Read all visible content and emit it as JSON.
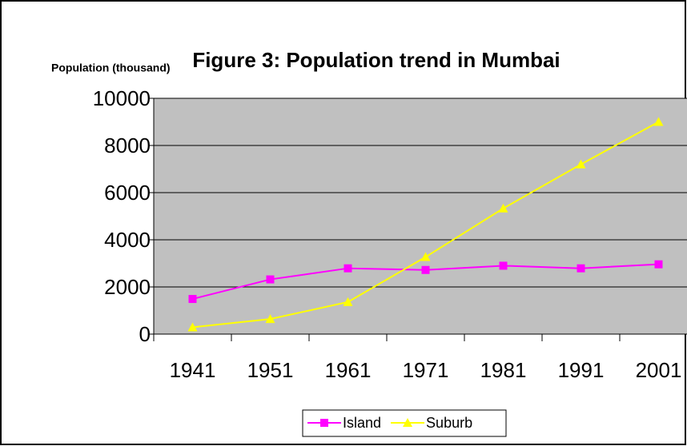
{
  "chart_data": {
    "type": "line",
    "title": "Figure 3: Population trend in Mumbai",
    "y_label": "Population (thousand)",
    "categories": [
      "1941",
      "1951",
      "1961",
      "1971",
      "1981",
      "1991",
      "2001"
    ],
    "series": [
      {
        "name": "Island",
        "color": "#ff00ff",
        "marker": "square",
        "values": [
          1490,
          2320,
          2790,
          2720,
          2900,
          2790,
          2960
        ]
      },
      {
        "name": "Suburb",
        "color": "#ffff00",
        "marker": "triangle",
        "values": [
          290,
          640,
          1360,
          3270,
          5330,
          7200,
          9000
        ]
      }
    ],
    "ylim": [
      0,
      10000
    ],
    "yticks": [
      0,
      2000,
      4000,
      6000,
      8000,
      10000
    ],
    "grid": true,
    "legend": "bottom"
  }
}
